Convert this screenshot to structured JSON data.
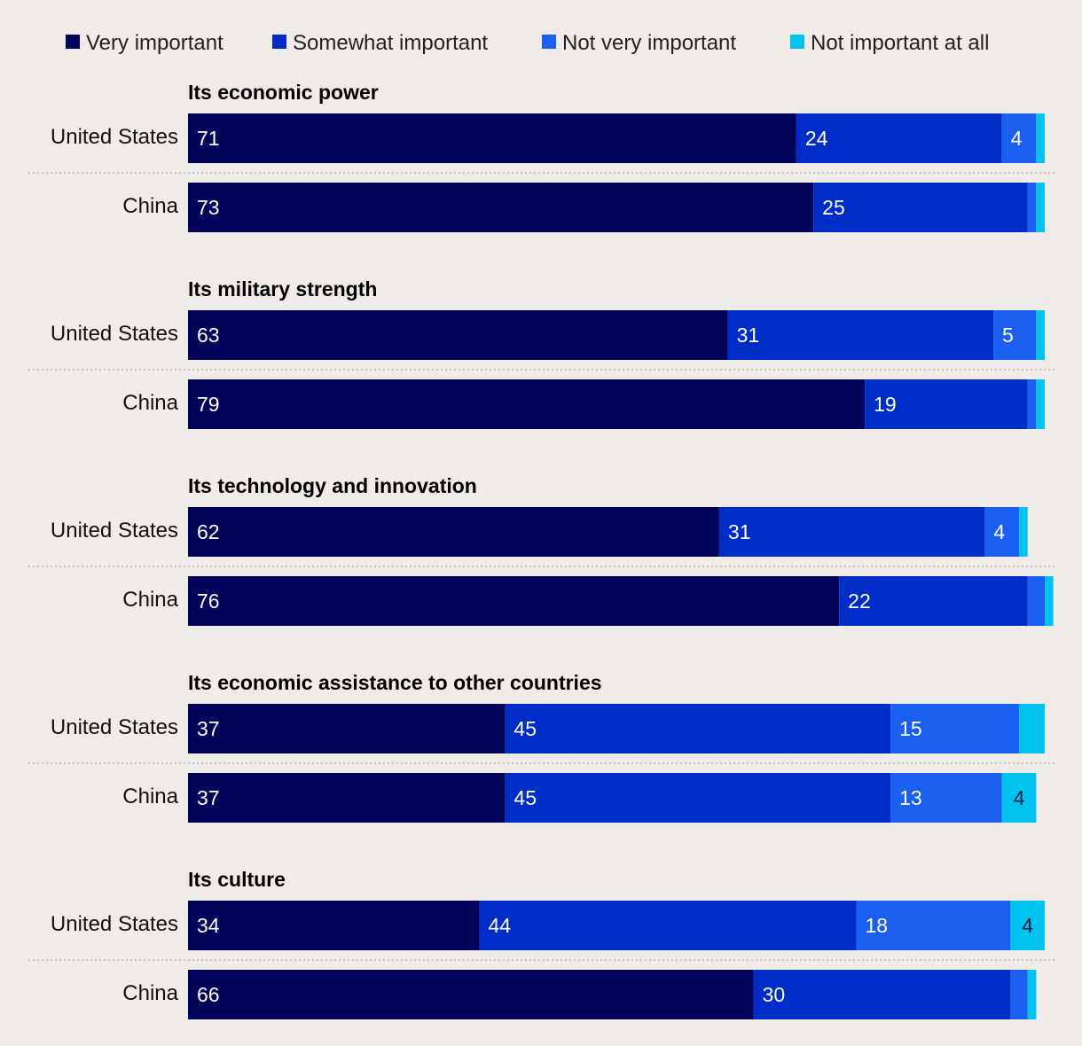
{
  "chart_data": {
    "type": "bar",
    "orientation": "horizontal",
    "stacked": true,
    "legend_position": "top",
    "legend": [
      {
        "key": "very",
        "label": "Very important",
        "color": "#03035a"
      },
      {
        "key": "somewhat",
        "label": "Somewhat important",
        "color": "#002dc8"
      },
      {
        "key": "not_very",
        "label": "Not very important",
        "color": "#1a5ff0"
      },
      {
        "key": "not_at_all",
        "label": "Not important at all",
        "color": "#00c3f0"
      }
    ],
    "groups": [
      {
        "title": "Its economic power",
        "rows": [
          {
            "label": "United States",
            "values": [
              71,
              24,
              4,
              1
            ],
            "labels": [
              "71",
              "24",
              "4",
              ""
            ]
          },
          {
            "label": "China",
            "values": [
              73,
              25,
              1,
              1
            ],
            "labels": [
              "73",
              "25",
              "",
              ""
            ]
          }
        ]
      },
      {
        "title": "Its military strength",
        "rows": [
          {
            "label": "United States",
            "values": [
              63,
              31,
              5,
              1
            ],
            "labels": [
              "63",
              "31",
              "5",
              ""
            ]
          },
          {
            "label": "China",
            "values": [
              79,
              19,
              1,
              1
            ],
            "labels": [
              "79",
              "19",
              "",
              ""
            ]
          }
        ]
      },
      {
        "title": "Its technology and innovation",
        "rows": [
          {
            "label": "United States",
            "values": [
              62,
              31,
              4,
              1
            ],
            "labels": [
              "62",
              "31",
              "4",
              ""
            ]
          },
          {
            "label": "China",
            "values": [
              76,
              22,
              2,
              1
            ],
            "labels": [
              "76",
              "22",
              "",
              ""
            ]
          }
        ]
      },
      {
        "title": "Its economic assistance to other countries",
        "rows": [
          {
            "label": "United States",
            "values": [
              37,
              45,
              15,
              3
            ],
            "labels": [
              "37",
              "45",
              "15",
              ""
            ]
          },
          {
            "label": "China",
            "values": [
              37,
              45,
              13,
              4
            ],
            "labels": [
              "37",
              "45",
              "13",
              "4"
            ]
          }
        ]
      },
      {
        "title": "Its culture",
        "rows": [
          {
            "label": "United States",
            "values": [
              34,
              44,
              18,
              4
            ],
            "labels": [
              "34",
              "44",
              "18",
              "4"
            ]
          },
          {
            "label": "China",
            "values": [
              66,
              30,
              2,
              1
            ],
            "labels": [
              "66",
              "30",
              "",
              ""
            ]
          }
        ]
      }
    ],
    "xlim": [
      0,
      100
    ]
  }
}
